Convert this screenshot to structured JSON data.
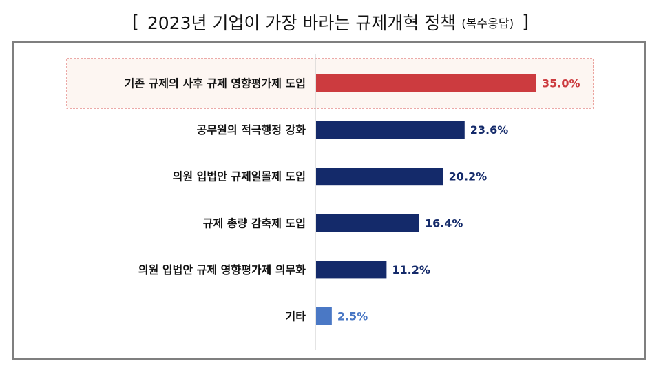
{
  "header": {
    "bracket_open": "[",
    "title": "2023년 기업이 가장 바라는 규제개혁 정책",
    "subtitle": "(복수응답)",
    "bracket_close": "]"
  },
  "colors": {
    "highlight": "#cc3b3f",
    "primary": "#142a6a",
    "other": "#4a78c5",
    "highlight_box_border": "#d9534f",
    "highlight_box_fill": "#fdf6f2",
    "axis": "#c8c8c8"
  },
  "chart_data": {
    "type": "bar",
    "orientation": "horizontal",
    "unit": "%",
    "xlim": [
      0,
      35.0
    ],
    "grid": false,
    "categories": [
      "기존 규제의 사후 규제 영향평가제 도입",
      "공무원의 적극행정 강화",
      "의원 입법안 규제일몰제 도입",
      "규제 총량 감축제 도입",
      "의원 입법안 규제 영향평가제 의무화",
      "기타"
    ],
    "values": [
      35.0,
      23.6,
      20.2,
      16.4,
      11.2,
      2.5
    ],
    "value_labels": [
      "35.0%",
      "23.6%",
      "20.2%",
      "16.4%",
      "11.2%",
      "2.5%"
    ],
    "highlighted_index": 0,
    "other_index": 5
  }
}
